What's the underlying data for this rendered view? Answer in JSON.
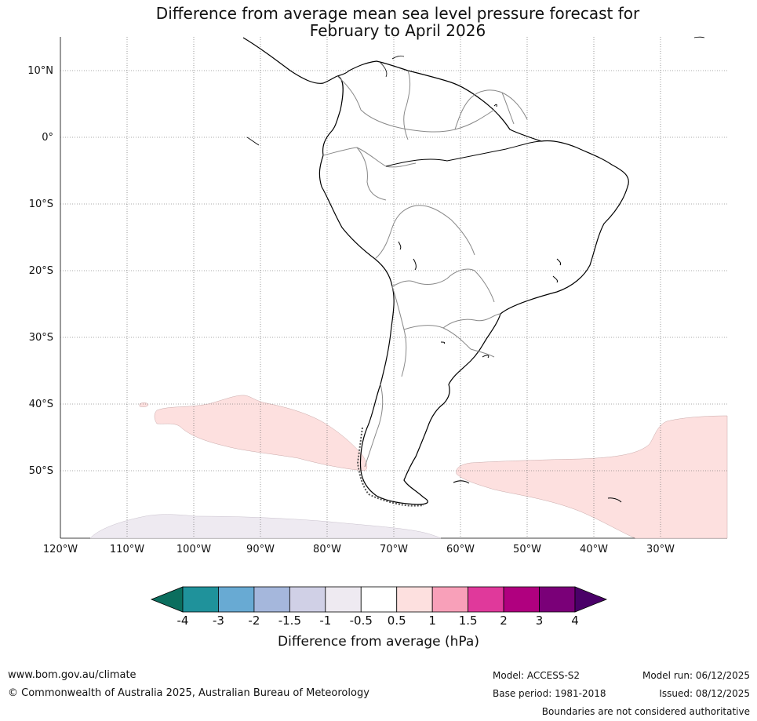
{
  "title": {
    "line1": "Difference from average mean sea level pressure forecast for",
    "line2": "February to April 2026"
  },
  "map": {
    "lat_labels": [
      "10°N",
      "0°",
      "10°S",
      "20°S",
      "30°S",
      "40°S",
      "50°S"
    ],
    "lon_labels": [
      "120°W",
      "110°W",
      "100°W",
      "90°W",
      "80°W",
      "70°W",
      "60°W",
      "50°W",
      "40°W",
      "30°W"
    ],
    "regions": [
      {
        "name": "south-pacific-anomaly",
        "value_range": "0.5 to 1 hPa",
        "color": "#fde0df"
      },
      {
        "name": "south-atlantic-anomaly",
        "value_range": "0.5 to 1 hPa",
        "color": "#fde0df"
      },
      {
        "name": "southern-ocean-anomaly",
        "value_range": "-1 to -0.5 hPa",
        "color": "#eeeaf1"
      }
    ]
  },
  "colorbar": {
    "ticks": [
      "-4",
      "-3",
      "-2",
      "-1.5",
      "-1",
      "-0.5",
      "0.5",
      "1",
      "1.5",
      "2",
      "3",
      "4"
    ],
    "colors": [
      "#0b6e5e",
      "#1f929b",
      "#68aad3",
      "#a5b7dc",
      "#d0d0e6",
      "#eeeaf1",
      "#ffffff",
      "#fde0df",
      "#f8a0b9",
      "#e0399b",
      "#b0007f",
      "#7a0078",
      "#4a0068"
    ],
    "label": "Difference from average (hPa)"
  },
  "footer": {
    "website": "www.bom.gov.au/climate",
    "copyright": "© Commonwealth of Australia 2025, Australian Bureau of Meteorology",
    "model": "Model: ACCESS-S2",
    "base_period": "Base period: 1981-2018",
    "model_run": "Model run: 06/12/2025",
    "issued": "Issued: 08/12/2025",
    "disclaimer": "Boundaries are not considered authoritative"
  }
}
